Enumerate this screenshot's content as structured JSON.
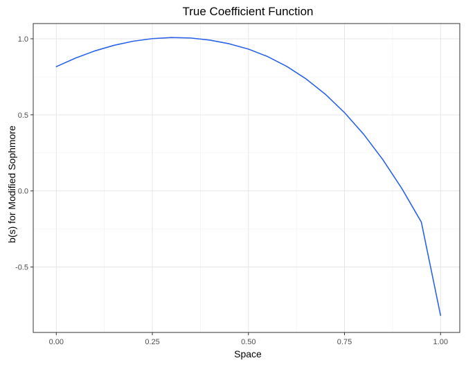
{
  "chart_data": {
    "type": "line",
    "title": "True Coefficient Function",
    "xlabel": "Space",
    "ylabel": "b(s) for Modified Sophmore",
    "xlim": [
      -0.06,
      1.05
    ],
    "ylim": [
      -0.93,
      1.1
    ],
    "grid": true,
    "x_ticks": [
      0.0,
      0.25,
      0.5,
      0.75,
      1.0
    ],
    "x_tick_labels": [
      "0.00",
      "0.25",
      "0.50",
      "0.75",
      "1.00"
    ],
    "y_ticks": [
      -0.5,
      0.0,
      0.5,
      1.0
    ],
    "y_tick_labels": [
      "-0.5",
      "0.0",
      "0.5",
      "1.0"
    ],
    "series": [
      {
        "color": "#2a62e6",
        "x": [
          0.0,
          0.05,
          0.1,
          0.15,
          0.2,
          0.25,
          0.3,
          0.35,
          0.4,
          0.45,
          0.5,
          0.55,
          0.6,
          0.65,
          0.7,
          0.75,
          0.8,
          0.85,
          0.9,
          0.95,
          1.0
        ],
        "y": [
          0.817,
          0.873,
          0.92,
          0.957,
          0.984,
          1.001,
          1.008,
          1.005,
          0.991,
          0.967,
          0.932,
          0.883,
          0.818,
          0.736,
          0.636,
          0.515,
          0.372,
          0.205,
          0.013,
          -0.205,
          -0.818
        ]
      }
    ]
  }
}
